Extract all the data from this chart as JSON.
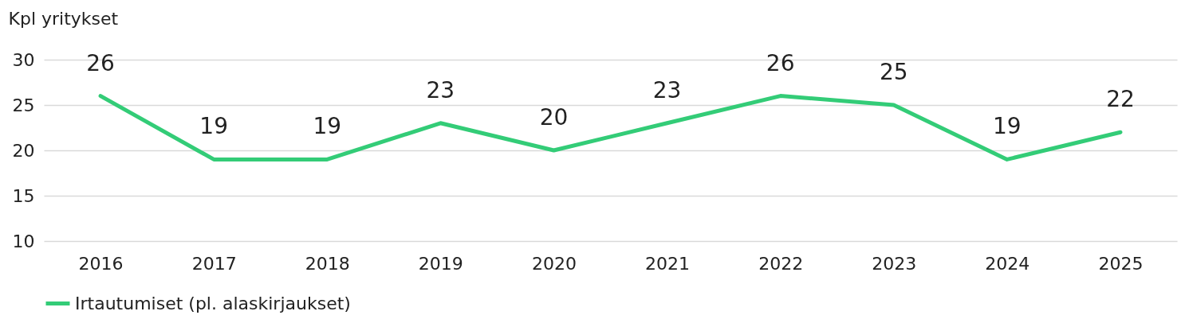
{
  "chart_data": {
    "type": "line",
    "ylabel": "Kpl yritykset",
    "categories": [
      "2016",
      "2017",
      "2018",
      "2019",
      "2020",
      "2021",
      "2022",
      "2023",
      "2024",
      "2025"
    ],
    "series": [
      {
        "name": "Irtautumiset (pl. alaskirjaukset)",
        "color": "#33cc77",
        "values": [
          26,
          19,
          19,
          23,
          20,
          23,
          26,
          25,
          19,
          22
        ]
      }
    ],
    "ylim": [
      10,
      30
    ],
    "yticks": [
      10,
      15,
      20,
      25,
      30
    ],
    "grid": "y",
    "legend": "bottom",
    "data_labels": true,
    "marker": "none",
    "line_style": "solid"
  }
}
